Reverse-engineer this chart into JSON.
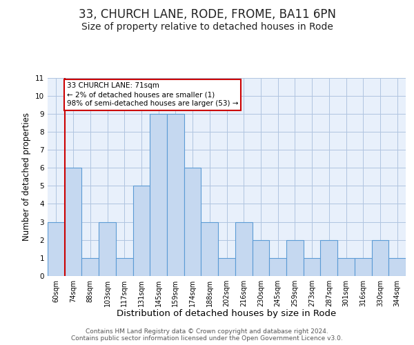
{
  "title": "33, CHURCH LANE, RODE, FROME, BA11 6PN",
  "subtitle": "Size of property relative to detached houses in Rode",
  "xlabel": "Distribution of detached houses by size in Rode",
  "ylabel": "Number of detached properties",
  "bin_labels": [
    "60sqm",
    "74sqm",
    "88sqm",
    "103sqm",
    "117sqm",
    "131sqm",
    "145sqm",
    "159sqm",
    "174sqm",
    "188sqm",
    "202sqm",
    "216sqm",
    "230sqm",
    "245sqm",
    "259sqm",
    "273sqm",
    "287sqm",
    "301sqm",
    "316sqm",
    "330sqm",
    "344sqm"
  ],
  "bar_values": [
    3,
    6,
    1,
    3,
    1,
    5,
    9,
    9,
    6,
    3,
    1,
    3,
    2,
    1,
    2,
    1,
    2,
    1,
    1,
    2,
    1
  ],
  "bar_color": "#c5d8f0",
  "bar_edge_color": "#5b9bd5",
  "ylim": [
    0,
    11
  ],
  "yticks": [
    0,
    1,
    2,
    3,
    4,
    5,
    6,
    7,
    8,
    9,
    10,
    11
  ],
  "annotation_text": "33 CHURCH LANE: 71sqm\n← 2% of detached houses are smaller (1)\n98% of semi-detached houses are larger (53) →",
  "annotation_box_color": "#ffffff",
  "annotation_box_edge_color": "#cc0000",
  "footer_line1": "Contains HM Land Registry data © Crown copyright and database right 2024.",
  "footer_line2": "Contains public sector information licensed under the Open Government Licence v3.0.",
  "background_color": "#e8f0fb",
  "grid_color": "#b0c4e0",
  "title_fontsize": 12,
  "subtitle_fontsize": 10,
  "xlabel_fontsize": 9.5,
  "ylabel_fontsize": 8.5,
  "tick_fontsize": 7.5,
  "footer_fontsize": 6.5,
  "red_line_x": 0.5
}
